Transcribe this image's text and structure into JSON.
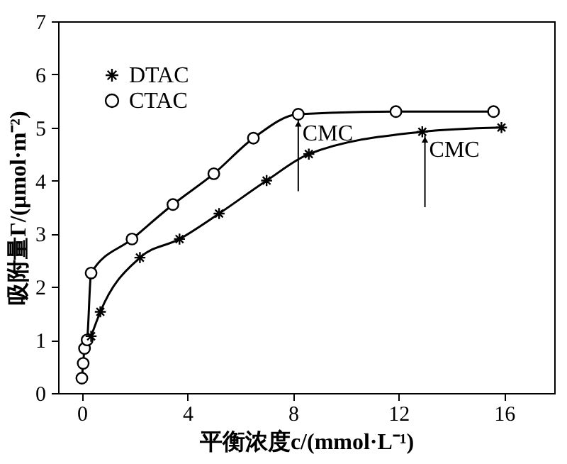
{
  "chart_data": {
    "type": "line",
    "xlabel": "平衡浓度c/(mmol·L⁻¹)",
    "ylabel": "吸附量Γ/(μmol·m⁻²)",
    "xlim": [
      -0.9,
      17.9
    ],
    "xticks": [
      0,
      4,
      8,
      12,
      16
    ],
    "ylim": [
      0,
      7
    ],
    "yticks": [
      0,
      1,
      2,
      3,
      4,
      5,
      6,
      7
    ],
    "grid": false,
    "legend": "top left",
    "line_style": "solid",
    "series": [
      {
        "name": "DTAC",
        "color": "#000000",
        "marker": "cross",
        "x": [
          0.35,
          0.7,
          2.2,
          3.7,
          5.2,
          7.0,
          8.6,
          12.9,
          15.9
        ],
        "values": [
          1.07,
          1.53,
          2.55,
          2.9,
          3.38,
          4.0,
          4.5,
          4.92,
          5.0
        ]
      },
      {
        "name": "CTAC",
        "color": "#000000",
        "marker": "circle",
        "x": [
          0.0,
          0.05,
          0.1,
          0.2,
          0.35,
          1.9,
          3.45,
          5.0,
          6.5,
          8.2,
          11.9,
          15.6
        ],
        "values": [
          0.28,
          0.56,
          0.84,
          1.0,
          2.26,
          2.9,
          3.55,
          4.13,
          4.8,
          5.25,
          5.3,
          5.3
        ]
      }
    ],
    "annotations": [
      {
        "text": "CMC",
        "x": 8.2,
        "y": 5.15
      },
      {
        "text": "CMC",
        "x": 13.0,
        "y": 4.85
      }
    ]
  }
}
